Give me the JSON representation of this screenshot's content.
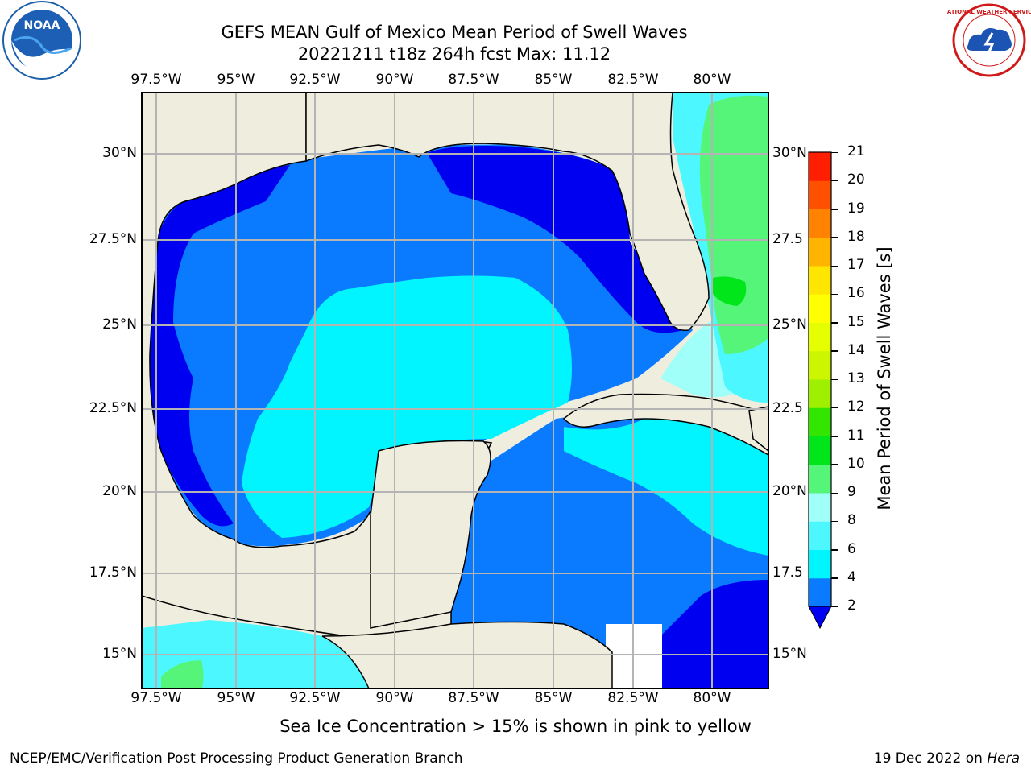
{
  "header": {
    "title_line1": "GEFS MEAN Gulf of Mexico Mean Period of Swell Waves",
    "title_line2": "20221211 t18z 264h fcst   Max: 11.12"
  },
  "logos": {
    "noaa_text": "NOAA",
    "nws_text": "NATIONAL WEATHER SERVICE"
  },
  "map": {
    "lon_labels": [
      "97.5°W",
      "95°W",
      "92.5°W",
      "90°W",
      "87.5°W",
      "85°W",
      "82.5°W",
      "80°W"
    ],
    "lat_labels_left": [
      "30°N",
      "27.5°N",
      "25°N",
      "22.5°N",
      "20°N",
      "17.5°N",
      "15°N"
    ],
    "lat_labels_right": [
      "30°N",
      "27.5",
      "25°N",
      "22.5",
      "20°N",
      "17.5",
      "15°N"
    ],
    "land_color": "#efedde",
    "grid_color": "#b4b4b4"
  },
  "colorbar": {
    "label": "Mean Period of Swell Waves [s]",
    "ticks": [
      "2",
      "4",
      "6",
      "8",
      "9",
      "10",
      "11",
      "12",
      "13",
      "14",
      "15",
      "16",
      "17",
      "18",
      "19",
      "20",
      "21"
    ],
    "bins": [
      {
        "from": 2,
        "to": 4,
        "color": "#0a7bff"
      },
      {
        "from": 4,
        "to": 6,
        "color": "#00f5ff"
      },
      {
        "from": 6,
        "to": 8,
        "color": "#4df7ff"
      },
      {
        "from": 8,
        "to": 9,
        "color": "#a0fff8"
      },
      {
        "from": 9,
        "to": 10,
        "color": "#55f57a"
      },
      {
        "from": 10,
        "to": 11,
        "color": "#00e61a"
      },
      {
        "from": 11,
        "to": 12,
        "color": "#32e600"
      },
      {
        "from": 12,
        "to": 13,
        "color": "#9ef000"
      },
      {
        "from": 13,
        "to": 14,
        "color": "#ccf500"
      },
      {
        "from": 14,
        "to": 15,
        "color": "#e6ff00"
      },
      {
        "from": 15,
        "to": 16,
        "color": "#ffff00"
      },
      {
        "from": 16,
        "to": 17,
        "color": "#ffe600"
      },
      {
        "from": 17,
        "to": 18,
        "color": "#ffb400"
      },
      {
        "from": 18,
        "to": 19,
        "color": "#ff8200"
      },
      {
        "from": 19,
        "to": 20,
        "color": "#ff5000"
      },
      {
        "from": 20,
        "to": 21,
        "color": "#ff1e00"
      }
    ],
    "under_color": "#0000f0"
  },
  "note": "Sea Ice Concentration > 15% is shown in pink to yellow",
  "footer": {
    "left": "NCEP/EMC/Verification Post Processing Product Generation Branch",
    "right_prefix": "19 Dec 2022 on ",
    "right_host": "Hera"
  }
}
